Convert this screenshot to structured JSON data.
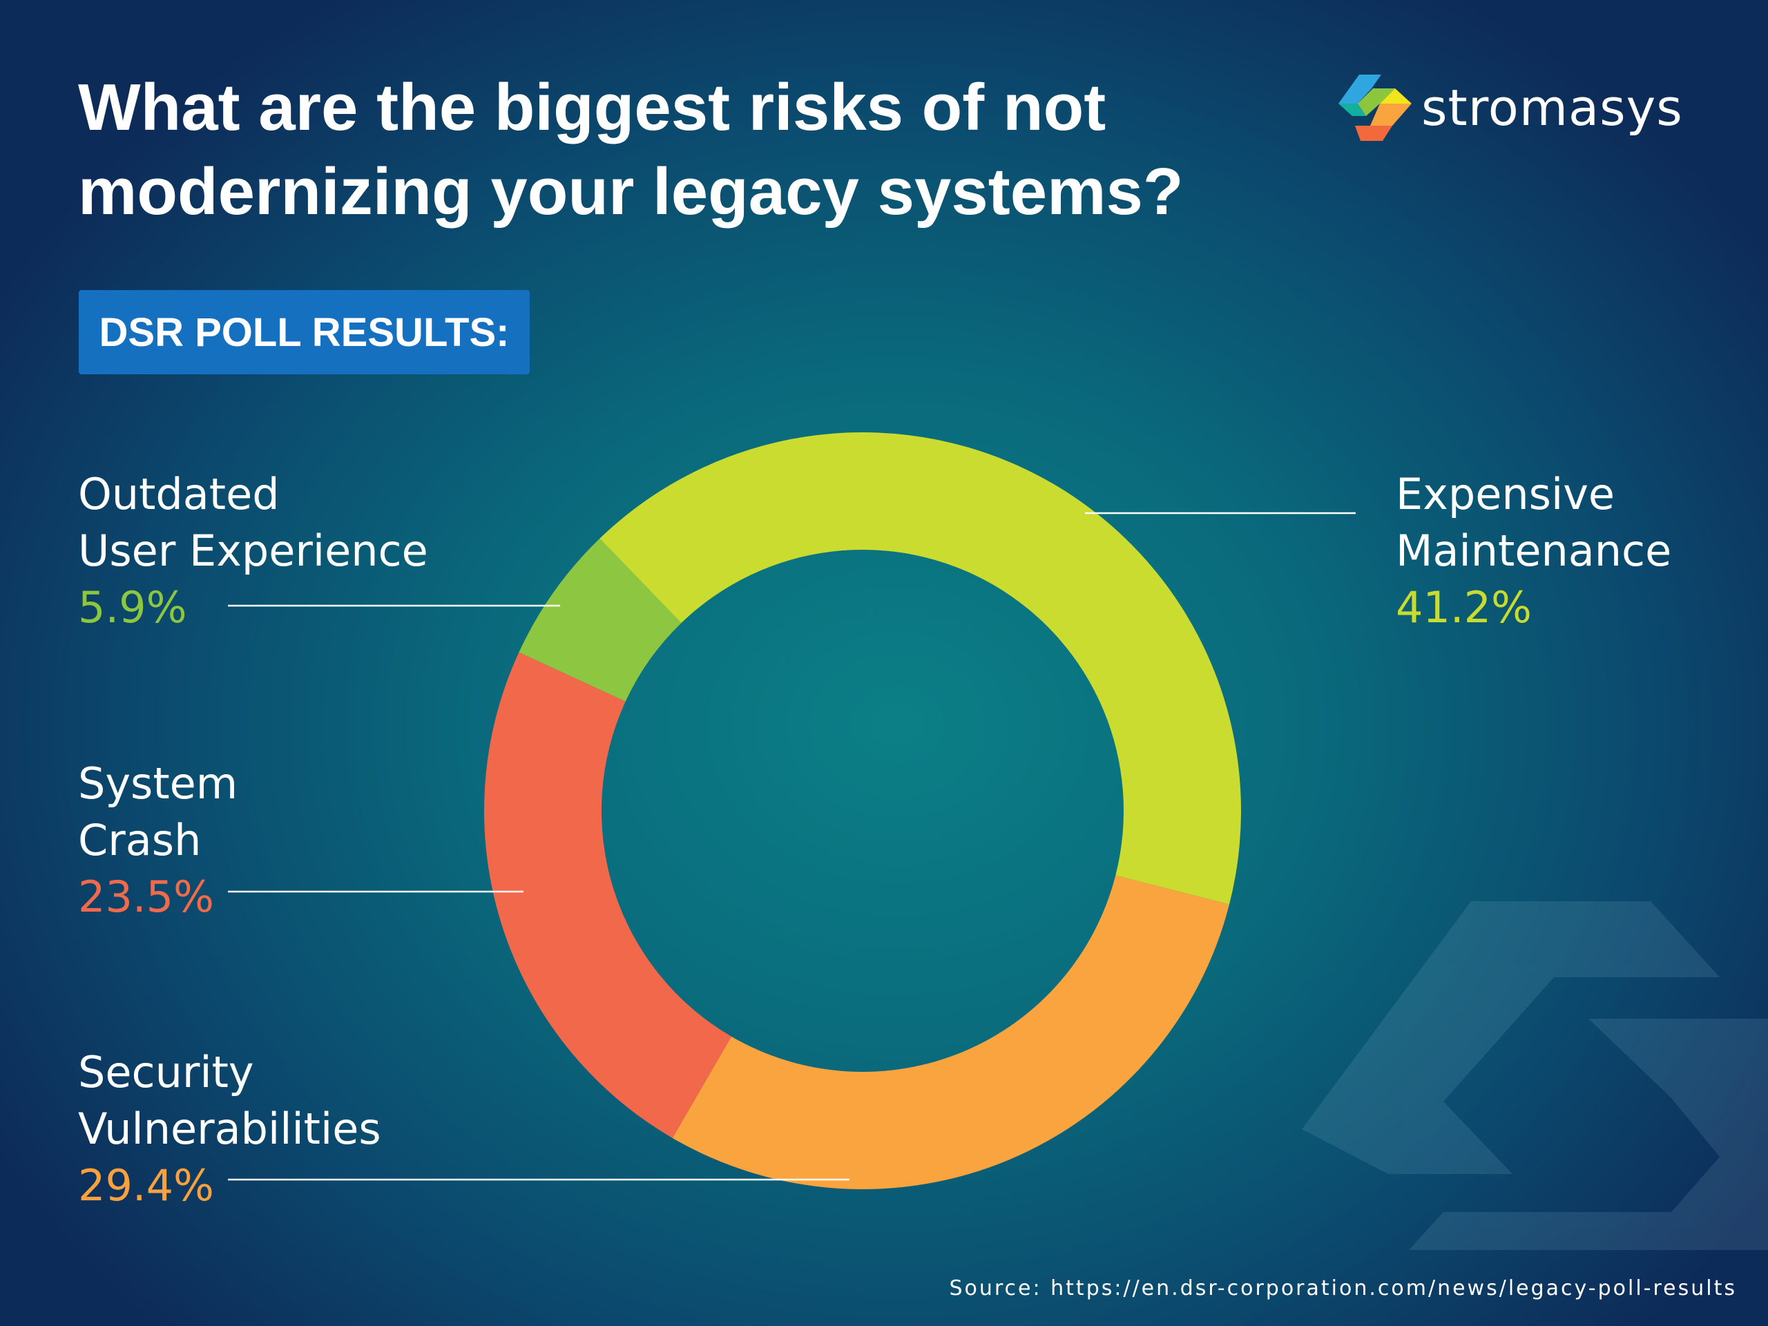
{
  "title_lines": [
    "What are the biggest risks of not",
    "modernizing your legacy systems?"
  ],
  "logo": {
    "text": "stromasys"
  },
  "badge": "DSR POLL RESULTS:",
  "source": "Source: https://en.dsr-corporation.com/news/legacy-poll-results",
  "chart_data": {
    "type": "pie",
    "variant": "donut",
    "title": "What are the biggest risks of not modernizing your legacy systems?",
    "slices": [
      {
        "label": "Expensive Maintenance",
        "label_lines": [
          "Expensive",
          "Maintenance"
        ],
        "value": 41.2,
        "value_text": "41.2%",
        "color": "#c9dc2f",
        "text_color": "#c8dc2e"
      },
      {
        "label": "Security Vulnerabilities",
        "label_lines": [
          "Security",
          "Vulnerabilities"
        ],
        "value": 29.4,
        "value_text": "29.4%",
        "color": "#f9a43f",
        "text_color": "#f9a13e"
      },
      {
        "label": "System Crash",
        "label_lines": [
          "System",
          "Crash"
        ],
        "value": 23.5,
        "value_text": "23.5%",
        "color": "#f1684a",
        "text_color": "#f26a4b"
      },
      {
        "label": "Outdated User Experience",
        "label_lines": [
          "Outdated",
          "User Experience"
        ],
        "value": 5.9,
        "value_text": "5.9%",
        "color": "#8dc641",
        "text_color": "#8dc63f"
      }
    ]
  }
}
